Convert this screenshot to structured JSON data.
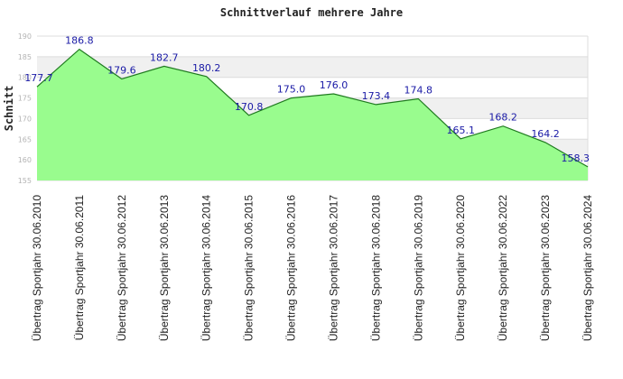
{
  "chart_data": {
    "type": "area",
    "title": "Schnittverlauf mehrere Jahre",
    "ylabel": "Schnitt",
    "xlabel": "",
    "ylim": [
      155,
      190
    ],
    "yticks": [
      155,
      160,
      165,
      170,
      175,
      180,
      185,
      190
    ],
    "grid": true,
    "categories": [
      "Übertrag Sportjahr 30.06.2010",
      "Übertrag Sportjahr 30.06.2011",
      "Übertrag Sportjahr 30.06.2012",
      "Übertrag Sportjahr 30.06.2013",
      "Übertrag Sportjahr 30.06.2014",
      "Übertrag Sportjahr 30.06.2015",
      "Übertrag Sportjahr 30.06.2016",
      "Übertrag Sportjahr 30.06.2017",
      "Übertrag Sportjahr 30.06.2018",
      "Übertrag Sportjahr 30.06.2019",
      "Übertrag Sportjahr 30.06.2020",
      "Übertrag Sportjahr 30.06.2022",
      "Übertrag Sportjahr 30.06.2023",
      "Übertrag Sportjahr 30.06.2024"
    ],
    "values": [
      177.7,
      186.8,
      179.6,
      182.7,
      180.2,
      170.8,
      175.0,
      176.0,
      173.4,
      174.8,
      165.1,
      168.2,
      164.2,
      158.3
    ],
    "labels": [
      "177.7",
      "186.8",
      "179.6",
      "182.7",
      "180.2",
      "170.8",
      "175.0",
      "176.0",
      "173.4",
      "174.8",
      "165.1",
      "168.2",
      "164.2",
      "158.3"
    ],
    "colors": {
      "fill": "#99fc8e",
      "line": "#1f7a1f",
      "band": "#f0f0f0",
      "grid": "#dcdcdc",
      "label": "#1a1aa6"
    }
  }
}
